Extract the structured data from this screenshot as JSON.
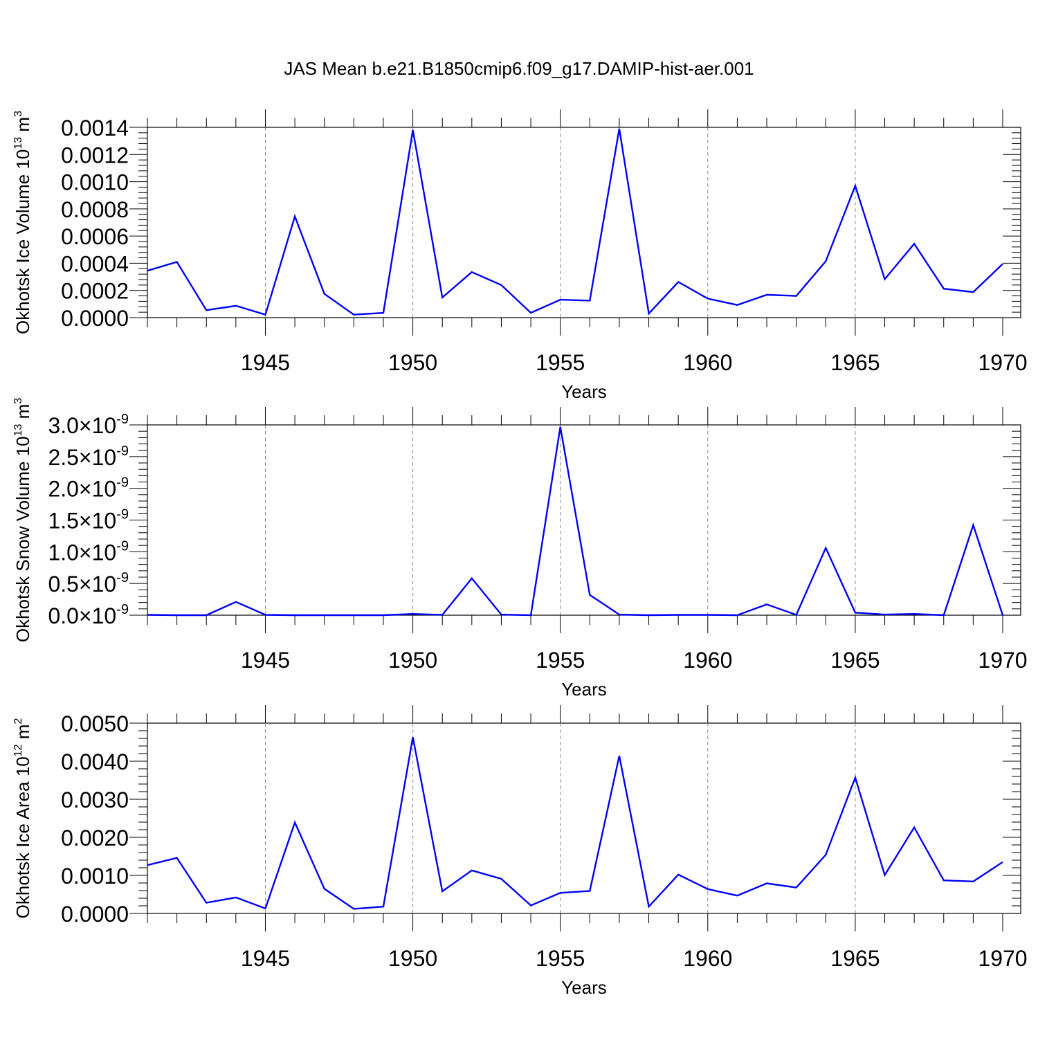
{
  "title": "JAS Mean b.e21.B1850cmip6.f09_g17.DAMIP-hist-aer.001",
  "colors": {
    "line": "#0000ff",
    "axis": "#000000",
    "grid": "#888888"
  },
  "chart_data": [
    {
      "type": "line",
      "ylabel_prefix": "Okhotsk Ice Volume 10",
      "ylabel_exp": "13",
      "ylabel_unit": " m",
      "ylabel_unit_exp": "3",
      "xlabel": "Years",
      "xlim": [
        1941,
        1970
      ],
      "ylim": [
        0,
        0.0014
      ],
      "yticks": [
        0,
        0.0002,
        0.0004,
        0.0006,
        0.0008,
        0.001,
        0.0012,
        0.0014
      ],
      "yticklabels": [
        "0.0000",
        "0.0002",
        "0.0004",
        "0.0006",
        "0.0008",
        "0.0010",
        "0.0012",
        "0.0014"
      ],
      "xticks": [
        1945,
        1950,
        1955,
        1960,
        1965,
        1970
      ],
      "xticklabels": [
        "1945",
        "1950",
        "1955",
        "1960",
        "1965",
        "1970"
      ],
      "x": [
        1941,
        1942,
        1943,
        1944,
        1945,
        1946,
        1947,
        1948,
        1949,
        1950,
        1951,
        1952,
        1953,
        1954,
        1955,
        1956,
        1957,
        1958,
        1959,
        1960,
        1961,
        1962,
        1963,
        1964,
        1965,
        1966,
        1967,
        1968,
        1969,
        1970
      ],
      "y": [
        0.000345,
        0.00041,
        5.5e-05,
        8.7e-05,
        2.2e-05,
        0.000745,
        0.000175,
        2.2e-05,
        3.5e-05,
        0.00138,
        0.000148,
        0.000335,
        0.00024,
        3.5e-05,
        0.000132,
        0.000125,
        0.00139,
        3e-05,
        0.000262,
        0.00014,
        9.3e-05,
        0.000168,
        0.00016,
        0.000415,
        0.00097,
        0.000283,
        0.000543,
        0.000213,
        0.000188,
        0.000395
      ]
    },
    {
      "type": "line",
      "ylabel_prefix": "Okhotsk Snow Volume 10",
      "ylabel_exp": "13",
      "ylabel_unit": " m",
      "ylabel_unit_exp": "3",
      "xlabel": "Years",
      "xlim": [
        1941,
        1970
      ],
      "ylim": [
        0,
        3e-09
      ],
      "yticks": [
        0,
        5e-10,
        1e-09,
        1.5e-09,
        2e-09,
        2.5e-09,
        3e-09
      ],
      "yticklabels": [
        "0.0",
        "0.5",
        "1.0",
        "1.5",
        "2.0",
        "2.5",
        "3.0"
      ],
      "ytick_mult": "×10",
      "ytick_exp": "-9",
      "xticks": [
        1945,
        1950,
        1955,
        1960,
        1965,
        1970
      ],
      "xticklabels": [
        "1945",
        "1950",
        "1955",
        "1960",
        "1965",
        "1970"
      ],
      "x": [
        1941,
        1942,
        1943,
        1944,
        1945,
        1946,
        1947,
        1948,
        1949,
        1950,
        1951,
        1952,
        1953,
        1954,
        1955,
        1956,
        1957,
        1958,
        1959,
        1960,
        1961,
        1962,
        1963,
        1964,
        1965,
        1966,
        1967,
        1968,
        1969,
        1970
      ],
      "y": [
        5e-12,
        0,
        0,
        2.1e-10,
        5e-12,
        0,
        0,
        0,
        0,
        2e-11,
        5e-12,
        5.8e-10,
        1e-11,
        0,
        2.97e-09,
        3.2e-10,
        1e-11,
        0,
        5e-12,
        5e-12,
        0,
        1.7e-10,
        5e-12,
        1.06e-09,
        4e-11,
        1e-11,
        2e-11,
        0,
        1.42e-09,
        0
      ]
    },
    {
      "type": "line",
      "ylabel_prefix": "Okhotsk Ice Area 10",
      "ylabel_exp": "12",
      "ylabel_unit": " m",
      "ylabel_unit_exp": "2",
      "xlabel": "Years",
      "xlim": [
        1941,
        1970
      ],
      "ylim": [
        0,
        0.005
      ],
      "yticks": [
        0,
        0.001,
        0.002,
        0.003,
        0.004,
        0.005
      ],
      "yticklabels": [
        "0.0000",
        "0.0010",
        "0.0020",
        "0.0030",
        "0.0040",
        "0.0050"
      ],
      "xticks": [
        1945,
        1950,
        1955,
        1960,
        1965,
        1970
      ],
      "xticklabels": [
        "1945",
        "1950",
        "1955",
        "1960",
        "1965",
        "1970"
      ],
      "x": [
        1941,
        1942,
        1943,
        1944,
        1945,
        1946,
        1947,
        1948,
        1949,
        1950,
        1951,
        1952,
        1953,
        1954,
        1955,
        1956,
        1957,
        1958,
        1959,
        1960,
        1961,
        1962,
        1963,
        1964,
        1965,
        1966,
        1967,
        1968,
        1969,
        1970
      ],
      "y": [
        0.00127,
        0.00146,
        0.00028,
        0.00042,
        0.00013,
        0.00239,
        0.00065,
        0.00012,
        0.00018,
        0.00463,
        0.00058,
        0.00113,
        0.00091,
        0.00021,
        0.00054,
        0.00059,
        0.00414,
        0.00018,
        0.00102,
        0.00064,
        0.00047,
        0.00079,
        0.00068,
        0.00154,
        0.00357,
        0.00101,
        0.00226,
        0.00087,
        0.00084,
        0.00135
      ]
    }
  ]
}
